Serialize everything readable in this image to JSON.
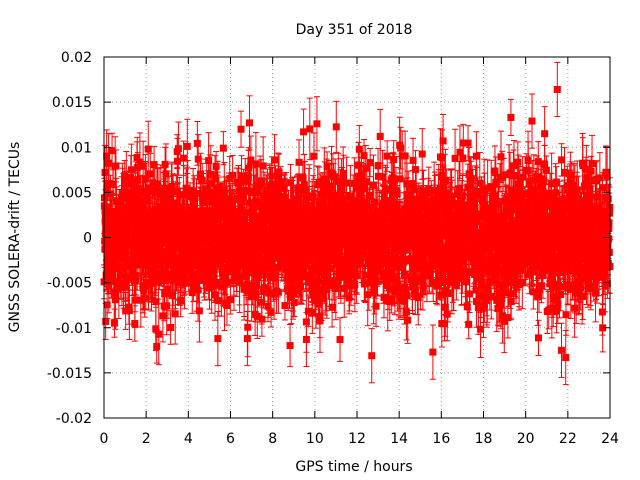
{
  "chart_data": {
    "type": "scatter",
    "title": "Day 351 of 2018",
    "xlabel": "GPS time / hours",
    "ylabel": "GNSS SOLERA-drift / TECUs",
    "xlim": [
      0,
      24
    ],
    "ylim": [
      -0.02,
      0.02
    ],
    "xticks": [
      0,
      2,
      4,
      6,
      8,
      10,
      12,
      14,
      16,
      18,
      20,
      22,
      24
    ],
    "xtick_labels": [
      "0",
      "2",
      "4",
      "6",
      "8",
      "10",
      "12",
      "14",
      "16",
      "18",
      "20",
      "22",
      "24"
    ],
    "yticks": [
      -0.02,
      -0.015,
      -0.01,
      -0.005,
      0,
      0.005,
      0.01,
      0.015,
      0.02
    ],
    "ytick_labels": [
      "-0.02",
      "-0.015",
      "-0.01",
      "-0.005",
      "0",
      "0.005",
      "0.01",
      "0.015",
      "0.02"
    ],
    "grid": true,
    "legend": "none",
    "series_color": "#ff0000",
    "error_bars": true,
    "points_per_hour": 120,
    "typical_error": 0.0025,
    "notable_points": [
      {
        "x": 0.05,
        "y": 0.0072,
        "err": 0.003
      },
      {
        "x": 0.08,
        "y": -0.0093,
        "err": 0.002
      },
      {
        "x": 3.95,
        "y": 0.0101,
        "err": 0.003
      },
      {
        "x": 5.4,
        "y": -0.0112,
        "err": 0.003
      },
      {
        "x": 6.5,
        "y": 0.012,
        "err": 0.002
      },
      {
        "x": 6.9,
        "y": 0.0127,
        "err": 0.003
      },
      {
        "x": 6.8,
        "y": -0.0112,
        "err": 0.003
      },
      {
        "x": 9.6,
        "y": -0.0113,
        "err": 0.003
      },
      {
        "x": 10.1,
        "y": 0.0126,
        "err": 0.003
      },
      {
        "x": 12.7,
        "y": -0.0131,
        "err": 0.003
      },
      {
        "x": 13.1,
        "y": 0.0112,
        "err": 0.003
      },
      {
        "x": 15.6,
        "y": -0.0127,
        "err": 0.003
      },
      {
        "x": 19.3,
        "y": 0.0133,
        "err": 0.002
      },
      {
        "x": 20.3,
        "y": 0.0129,
        "err": 0.003
      },
      {
        "x": 20.9,
        "y": 0.0115,
        "err": 0.003
      },
      {
        "x": 21.5,
        "y": 0.0164,
        "err": 0.003
      },
      {
        "x": 21.9,
        "y": -0.0133,
        "err": 0.003
      },
      {
        "x": 21.7,
        "y": -0.0125,
        "err": 0.003
      }
    ]
  }
}
